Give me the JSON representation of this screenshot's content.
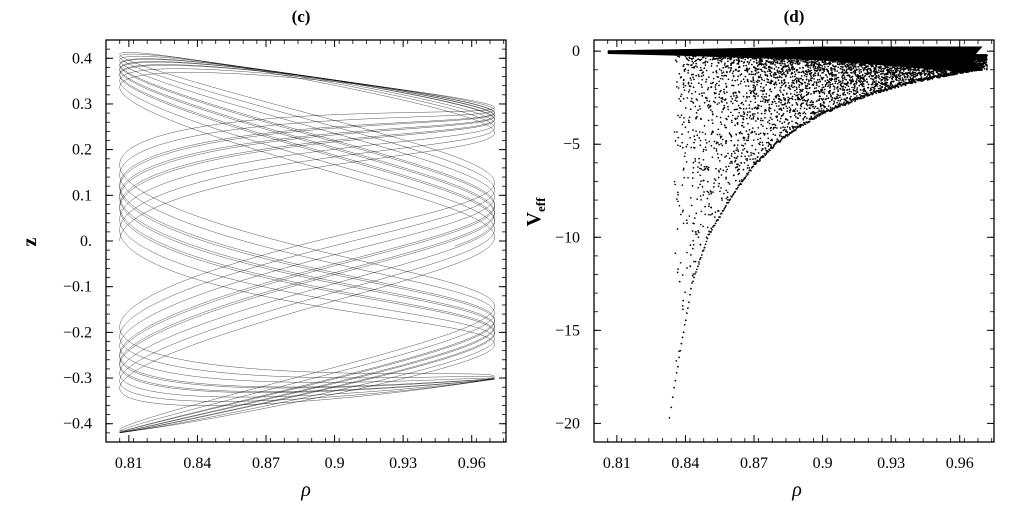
{
  "chart_data": [
    {
      "panel": "c",
      "type": "line",
      "title": "(c)",
      "xlabel": "ρ",
      "ylabel": "z",
      "xlim": [
        0.8,
        0.975
      ],
      "ylim": [
        -0.44,
        0.44
      ],
      "xticks": [
        "0.81",
        "0.84",
        "0.87",
        "0.9",
        "0.93",
        "0.96"
      ],
      "xtick_values": [
        0.81,
        0.84,
        0.87,
        0.9,
        0.93,
        0.96
      ],
      "yticks": [
        "0.4",
        "0.3",
        "0.2",
        "0.1",
        "0.",
        "−0.1",
        "−0.2",
        "−0.3",
        "−0.4"
      ],
      "ytick_values": [
        0.4,
        0.3,
        0.2,
        0.1,
        0.0,
        -0.1,
        -0.2,
        -0.3,
        -0.4
      ],
      "series": [
        {
          "style": "thin black line, dense quasi-periodic orbit",
          "line_color": "#000000",
          "rho_range": [
            0.806,
            0.97
          ],
          "z_range": [
            -0.42,
            0.42
          ],
          "turning_points": [
            {
              "rho": 0.806,
              "z": 0.35
            },
            {
              "rho": 0.806,
              "z": -0.35
            },
            {
              "rho": 0.953,
              "z": 0.19
            },
            {
              "rho": 0.953,
              "z": -0.19
            }
          ]
        }
      ]
    },
    {
      "panel": "d",
      "type": "scatter",
      "title": "(d)",
      "xlabel": "ρ",
      "ylabel": "V",
      "ylabel_sub": "eff",
      "xlim": [
        0.8,
        0.975
      ],
      "ylim": [
        -21,
        0.6
      ],
      "xticks": [
        "0.81",
        "0.84",
        "0.87",
        "0.9",
        "0.93",
        "0.96"
      ],
      "xtick_values": [
        0.81,
        0.84,
        0.87,
        0.9,
        0.93,
        0.96
      ],
      "yticks": [
        "0",
        "−5",
        "−10",
        "−15",
        "−20"
      ],
      "ytick_values": [
        0,
        -5,
        -10,
        -15,
        -20
      ],
      "series": [
        {
          "marker_color": "#000000",
          "envelope_lower": [
            {
              "rho": 0.833,
              "veff": -19.8
            },
            {
              "rho": 0.838,
              "veff": -16.0
            },
            {
              "rho": 0.843,
              "veff": -12.5
            },
            {
              "rho": 0.85,
              "veff": -10.0
            },
            {
              "rho": 0.86,
              "veff": -7.9
            },
            {
              "rho": 0.87,
              "veff": -6.2
            },
            {
              "rho": 0.88,
              "veff": -5.0
            },
            {
              "rho": 0.89,
              "veff": -4.1
            },
            {
              "rho": 0.9,
              "veff": -3.4
            },
            {
              "rho": 0.92,
              "veff": -2.4
            },
            {
              "rho": 0.94,
              "veff": -1.7
            },
            {
              "rho": 0.96,
              "veff": -1.2
            },
            {
              "rho": 0.97,
              "veff": -1.0
            }
          ],
          "top_band": {
            "rho_start": 0.806,
            "rho_end": 0.97,
            "veff": -0.2
          }
        }
      ]
    }
  ]
}
